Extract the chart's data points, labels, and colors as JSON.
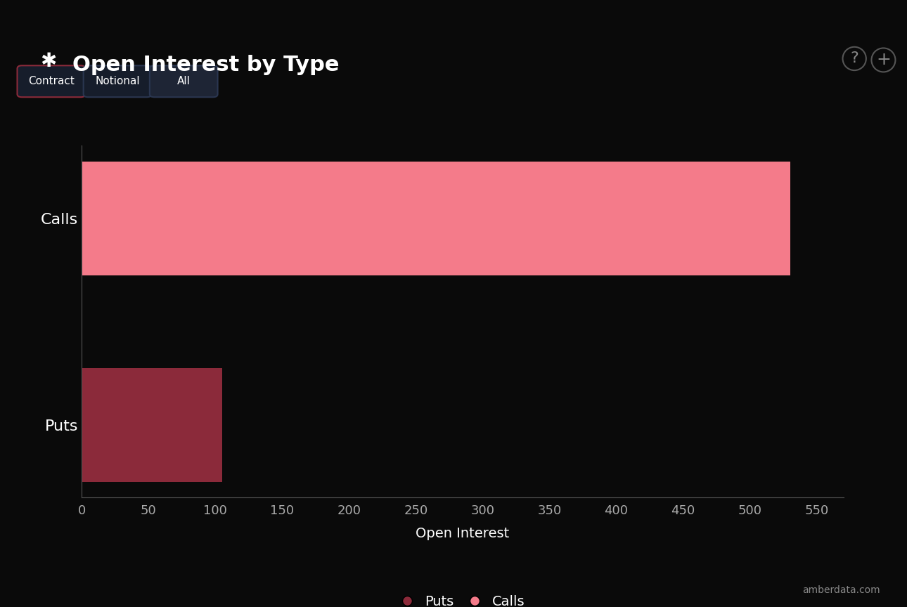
{
  "title": "Open Interest by Type",
  "categories": [
    "Puts",
    "Calls"
  ],
  "values": [
    105,
    530
  ],
  "bar_colors": [
    "#8B2A3A",
    "#F47B8A"
  ],
  "background_color": "#0a0a0a",
  "text_color": "#ffffff",
  "xlabel": "Open Interest",
  "xlim": [
    0,
    570
  ],
  "xticks": [
    0,
    50,
    100,
    150,
    200,
    250,
    300,
    350,
    400,
    450,
    500,
    550
  ],
  "legend_labels": [
    "Puts",
    "Calls"
  ],
  "legend_colors": [
    "#8B2A3A",
    "#F47B8A"
  ],
  "axis_line_color": "#555555",
  "tick_color": "#aaaaaa",
  "watermark": "amberdata.com",
  "button_labels": [
    "Contract",
    "Notional",
    "All"
  ],
  "title_fontsize": 22,
  "label_fontsize": 14,
  "tick_fontsize": 13
}
